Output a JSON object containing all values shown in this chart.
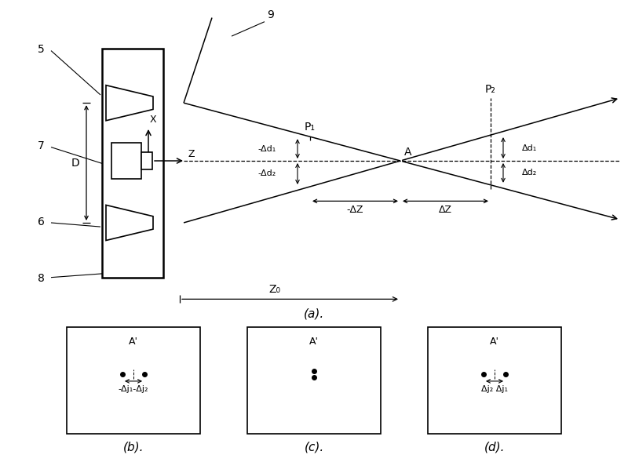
{
  "bg_color": "#ffffff",
  "line_color": "#000000",
  "fig_width": 8.0,
  "fig_height": 6.03,
  "axis_label_a": "(a).",
  "axis_label_b": "(b).",
  "axis_label_c": "(c).",
  "axis_label_d": "(d).",
  "label_5": "5",
  "label_6": "6",
  "label_7": "7",
  "label_8": "8",
  "label_9": "9",
  "label_D": "D",
  "label_X": "X",
  "label_Z": "Z",
  "label_P1": "P₁",
  "label_P2": "P₂",
  "label_A": "A",
  "label_neg_delta_d1": "-Δd₁",
  "label_neg_delta_d2": "-Δd₂",
  "label_pos_delta_d2": "Δd₂",
  "label_pos_delta_d1": "Δd₁",
  "label_neg_delta_Z": "-ΔZ",
  "label_pos_delta_Z": "ΔZ",
  "label_Z0": "Z₀",
  "label_Aprime": "A'",
  "label_neg_j1_j2": "-Δj₁-Δj₂",
  "label_pos_j2_j1": "Δj₂ Δj₁"
}
